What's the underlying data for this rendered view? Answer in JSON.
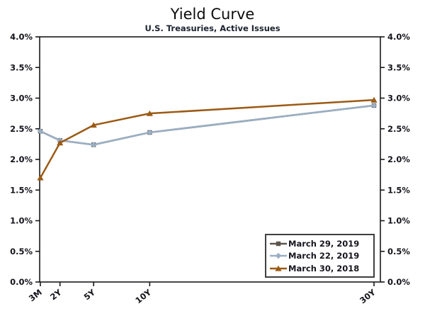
{
  "header": {
    "title": "Yield Curve",
    "subtitle": "U.S. Treasuries, Active Issues"
  },
  "colors": {
    "background": "#ffffff",
    "axis_line": "#1a1a1a",
    "axis_label": "#14141c",
    "title_text": "#0c0c0c",
    "subtitle_text": "#1c2330",
    "legend_border": "#3f3f3f",
    "series_march_29_2019": "#5F554E",
    "series_march_22_2019": "#9AAFC4",
    "series_march_30_2018": "#9B5A14"
  },
  "chart_data": {
    "type": "line",
    "title": "Yield Curve",
    "subtitle": "U.S. Treasuries, Active Issues",
    "categories": [
      "3M",
      "2Y",
      "5Y",
      "10Y",
      "30Y"
    ],
    "x_years": [
      0.25,
      2,
      5,
      10,
      30
    ],
    "x_scale": "linear-in-years",
    "ylim": [
      0,
      4
    ],
    "y_tick_step": 0.5,
    "y_tick_labels": [
      "0.0%",
      "0.5%",
      "1.0%",
      "1.5%",
      "2.0%",
      "2.5%",
      "3.0%",
      "3.5%",
      "4.0%"
    ],
    "y_axis_sides": [
      "left",
      "right"
    ],
    "grid": false,
    "legend_position": "inside-bottom-right",
    "series": [
      {
        "name": "March 29, 2019",
        "color": "#5F554E",
        "marker": "square",
        "values": [
          2.46,
          2.31,
          2.24,
          2.44,
          2.88
        ]
      },
      {
        "name": "March 22, 2019",
        "color": "#9AAFC4",
        "marker": "diamond",
        "values": [
          2.46,
          2.31,
          2.24,
          2.44,
          2.88
        ]
      },
      {
        "name": "March 30, 2018",
        "color": "#9B5A14",
        "marker": "triangle",
        "values": [
          1.7,
          2.27,
          2.56,
          2.75,
          2.97
        ]
      }
    ]
  }
}
